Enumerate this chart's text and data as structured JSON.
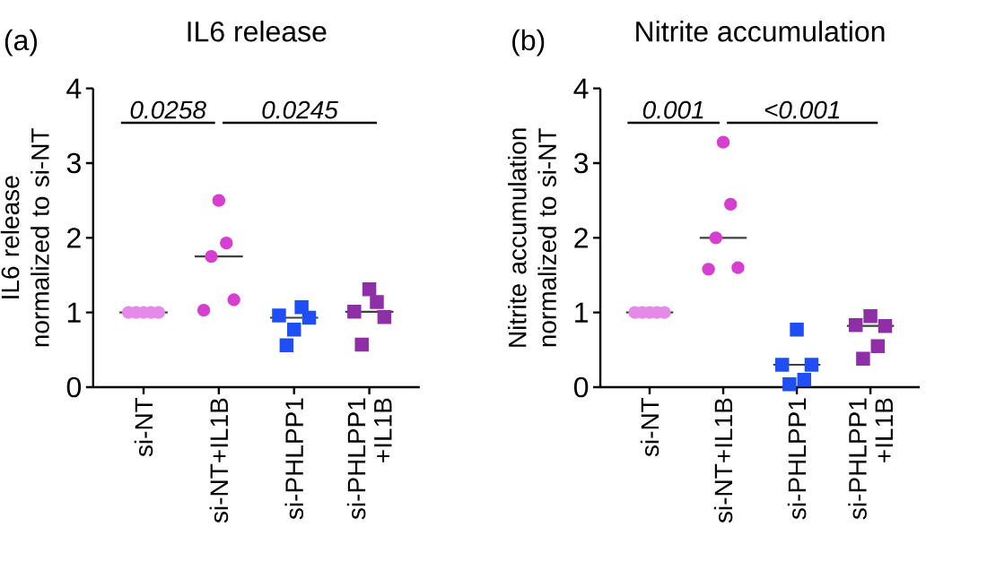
{
  "chart_data": [
    {
      "type": "scatter",
      "title": "IL6 release",
      "ylabel": "IL6 release normalized to si-NT",
      "categories": [
        "si-NT",
        "si-NT+IL1B",
        "si-PHLPP1",
        "si-PHLPP1 +IL1B"
      ],
      "series": [
        {
          "type": "scatter",
          "color": "#e68ae9",
          "marker": "circle",
          "x": [
            "si-NT",
            "si-NT",
            "si-NT",
            "si-NT",
            "si-NT"
          ],
          "values": [
            1,
            1,
            1,
            1,
            1
          ]
        },
        {
          "type": "scatter",
          "color": "#d63fd0",
          "marker": "circle",
          "x": [
            "si-NT+IL1B",
            "si-NT+IL1B",
            "si-NT+IL1B",
            "si-NT+IL1B",
            "si-NT+IL1B"
          ],
          "values": [
            1.03,
            1.75,
            2.5,
            1.93,
            1.17
          ]
        },
        {
          "type": "scatter",
          "color": "#1f4ef5",
          "marker": "square",
          "x": [
            "si-PHLPP1",
            "si-PHLPP1",
            "si-PHLPP1",
            "si-PHLPP1",
            "si-PHLPP1"
          ],
          "values": [
            0.96,
            0.56,
            0.77,
            1.07,
            0.93
          ]
        },
        {
          "type": "scatter",
          "color": "#8e2fa8",
          "marker": "square",
          "x": [
            "si-PHLPP1 +IL1B",
            "si-PHLPP1 +IL1B",
            "si-PHLPP1 +IL1B",
            "si-PHLPP1 +IL1B",
            "si-PHLPP1 +IL1B"
          ],
          "values": [
            1.01,
            0.57,
            1.31,
            1.14,
            0.94
          ]
        }
      ],
      "ylim": [
        0,
        4
      ],
      "yticks": [
        0,
        1,
        2,
        3,
        4
      ],
      "grid": false,
      "annotations": [
        "(a)",
        "0.0258",
        "0.0245"
      ]
    },
    {
      "type": "scatter",
      "title": "Nitrite accumulation",
      "ylabel": "Nitrite accumulation normalized to si-NT",
      "categories": [
        "si-NT",
        "si-NT+IL1B",
        "si-PHLPP1",
        "si-PHLPP1 +IL1B"
      ],
      "series": [
        {
          "type": "scatter",
          "color": "#e68ae9",
          "marker": "circle",
          "x": [
            "si-NT",
            "si-NT",
            "si-NT",
            "si-NT",
            "si-NT"
          ],
          "values": [
            1,
            1,
            1,
            1,
            1
          ]
        },
        {
          "type": "scatter",
          "color": "#d63fd0",
          "marker": "circle",
          "x": [
            "si-NT+IL1B",
            "si-NT+IL1B",
            "si-NT+IL1B",
            "si-NT+IL1B",
            "si-NT+IL1B"
          ],
          "values": [
            1.58,
            2.0,
            3.28,
            2.45,
            1.6
          ]
        },
        {
          "type": "scatter",
          "color": "#1f4ef5",
          "marker": "square",
          "x": [
            "si-PHLPP1",
            "si-PHLPP1",
            "si-PHLPP1",
            "si-PHLPP1",
            "si-PHLPP1"
          ],
          "values": [
            0.3,
            0.04,
            0.77,
            0.1,
            0.3
          ]
        },
        {
          "type": "scatter",
          "color": "#8e2fa8",
          "marker": "square",
          "x": [
            "si-PHLPP1 +IL1B",
            "si-PHLPP1 +IL1B",
            "si-PHLPP1 +IL1B",
            "si-PHLPP1 +IL1B",
            "si-PHLPP1 +IL1B"
          ],
          "values": [
            0.83,
            0.38,
            0.95,
            0.55,
            0.82
          ]
        }
      ],
      "ylim": [
        0,
        4
      ],
      "yticks": [
        0,
        1,
        2,
        3,
        4
      ],
      "grid": false,
      "annotations": [
        "(b)",
        "0.001",
        "<0.001"
      ]
    }
  ]
}
